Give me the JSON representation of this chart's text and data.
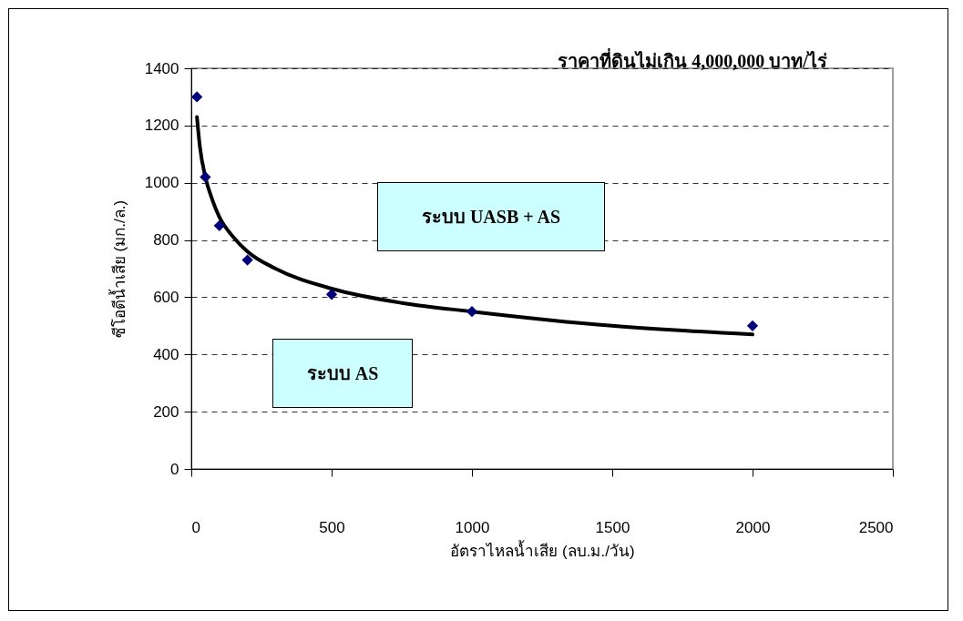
{
  "chart_data": {
    "type": "scatter",
    "title": "ราคาที่ดินไม่เกิน 4,000,000 บาท/ไร่",
    "xlabel": "อัตราไหลน้ำเสีย (ลบ.ม./วัน)",
    "ylabel": "ซีโอดีน้ำเสีย (มก./ล.)",
    "annotations": [
      "ระบบ UASB + AS",
      "ระบบ AS"
    ],
    "x": [
      20,
      50,
      100,
      200,
      500,
      1000,
      2000
    ],
    "series": [
      {
        "color": "#000080",
        "values": [
          1300,
          1020,
          850,
          730,
          610,
          550,
          500
        ]
      },
      {
        "type": "line",
        "marker": "none",
        "color": "#000000",
        "x": [
          20,
          30,
          50,
          75,
          100,
          150,
          200,
          300,
          500,
          750,
          1000,
          1500,
          2000
        ],
        "values": [
          1230,
          1130,
          1020,
          940,
          880,
          810,
          760,
          700,
          630,
          580,
          550,
          500,
          470
        ]
      }
    ],
    "xlim": [
      0,
      2500
    ],
    "xticks": [
      0,
      500,
      1000,
      1500,
      2000,
      2500
    ],
    "ylim": [
      0,
      1400
    ],
    "yticks": [
      0,
      200,
      400,
      600,
      800,
      1000,
      1200,
      1400
    ],
    "grid": "y",
    "marker": "diamond",
    "line_style": "solid"
  }
}
